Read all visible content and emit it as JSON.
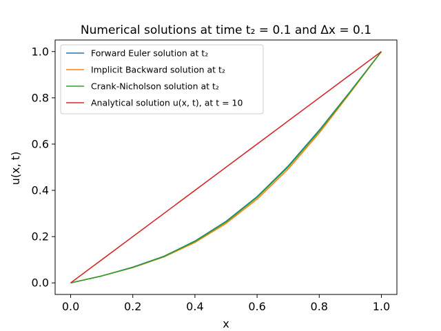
{
  "chart_data": {
    "type": "line",
    "title": "Numerical solutions at time t₂ = 0.1 and Δx = 0.1",
    "xlabel": "x",
    "ylabel": "u(x, t)",
    "xlim": [
      -0.05,
      1.05
    ],
    "ylim": [
      -0.05,
      1.05
    ],
    "xticks": [
      0.0,
      0.2,
      0.4,
      0.6,
      0.8,
      1.0
    ],
    "yticks": [
      0.0,
      0.2,
      0.4,
      0.6,
      0.8,
      1.0
    ],
    "xtick_labels": [
      "0.0",
      "0.2",
      "0.4",
      "0.6",
      "0.8",
      "1.0"
    ],
    "ytick_labels": [
      "0.0",
      "0.2",
      "0.4",
      "0.6",
      "0.8",
      "1.0"
    ],
    "grid": false,
    "legend_position": "top-left",
    "x": [
      0.0,
      0.1,
      0.2,
      0.3,
      0.4,
      0.5,
      0.6,
      0.7,
      0.8,
      0.9,
      1.0
    ],
    "series": [
      {
        "name": "Forward Euler solution at t₂",
        "color": "#1f77b4",
        "values": [
          0.0,
          0.03,
          0.068,
          0.115,
          0.181,
          0.266,
          0.373,
          0.505,
          0.66,
          0.828,
          1.0
        ]
      },
      {
        "name": "Implicit Backward solution at t₂",
        "color": "#ff7f0e",
        "values": [
          0.0,
          0.03,
          0.066,
          0.112,
          0.175,
          0.257,
          0.362,
          0.492,
          0.648,
          0.822,
          1.0
        ]
      },
      {
        "name": "Crank-Nicholson solution at t₂",
        "color": "#2ca02c",
        "values": [
          0.0,
          0.03,
          0.067,
          0.114,
          0.179,
          0.263,
          0.37,
          0.501,
          0.656,
          0.826,
          1.0
        ]
      },
      {
        "name": "Analytical solution u(x, t), at t = 10",
        "color": "#d62728",
        "values": [
          0.0,
          0.1,
          0.2,
          0.3,
          0.4,
          0.5,
          0.6,
          0.7,
          0.8,
          0.9,
          1.0
        ]
      }
    ]
  }
}
